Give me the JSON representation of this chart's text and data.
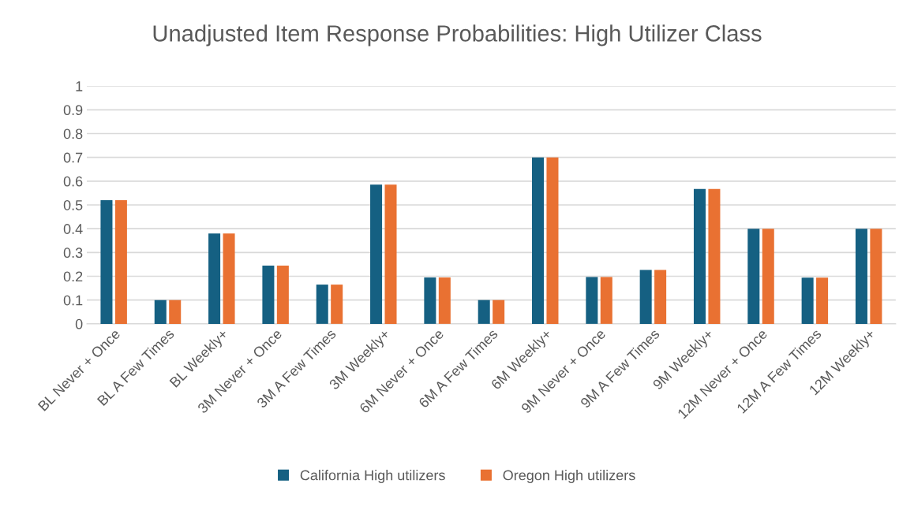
{
  "chart_data": {
    "type": "bar",
    "title": "Unadjusted Item Response Probabilities: High Utilizer Class",
    "categories": [
      "BL Never + Once",
      "BL A Few Times",
      "BL Weekly+",
      "3M Never + Once",
      "3M A Few Times",
      "3M Weekly+",
      "6M Never + Once",
      "6M A Few Times",
      "6M Weekly+",
      "9M Never + Once",
      "9M A Few Times",
      "9M Weekly+",
      "12M Never + Once",
      "12M A Few Times",
      "12M Weekly+"
    ],
    "series": [
      {
        "name": "California High utilizers",
        "color": "#156082",
        "values": [
          0.52,
          0.1,
          0.38,
          0.245,
          0.165,
          0.585,
          0.195,
          0.1,
          0.7,
          0.197,
          0.227,
          0.567,
          0.4,
          0.194,
          0.4
        ]
      },
      {
        "name": "Oregon High utilizers",
        "color": "#e97132",
        "values": [
          0.52,
          0.1,
          0.38,
          0.245,
          0.165,
          0.585,
          0.195,
          0.1,
          0.7,
          0.197,
          0.227,
          0.567,
          0.4,
          0.194,
          0.4
        ]
      }
    ],
    "ylim": [
      0,
      1
    ],
    "yticks": [
      0,
      0.1,
      0.2,
      0.3,
      0.4,
      0.5,
      0.6,
      0.7,
      0.8,
      0.9,
      1
    ],
    "grid": "y",
    "legend": "bottom"
  }
}
